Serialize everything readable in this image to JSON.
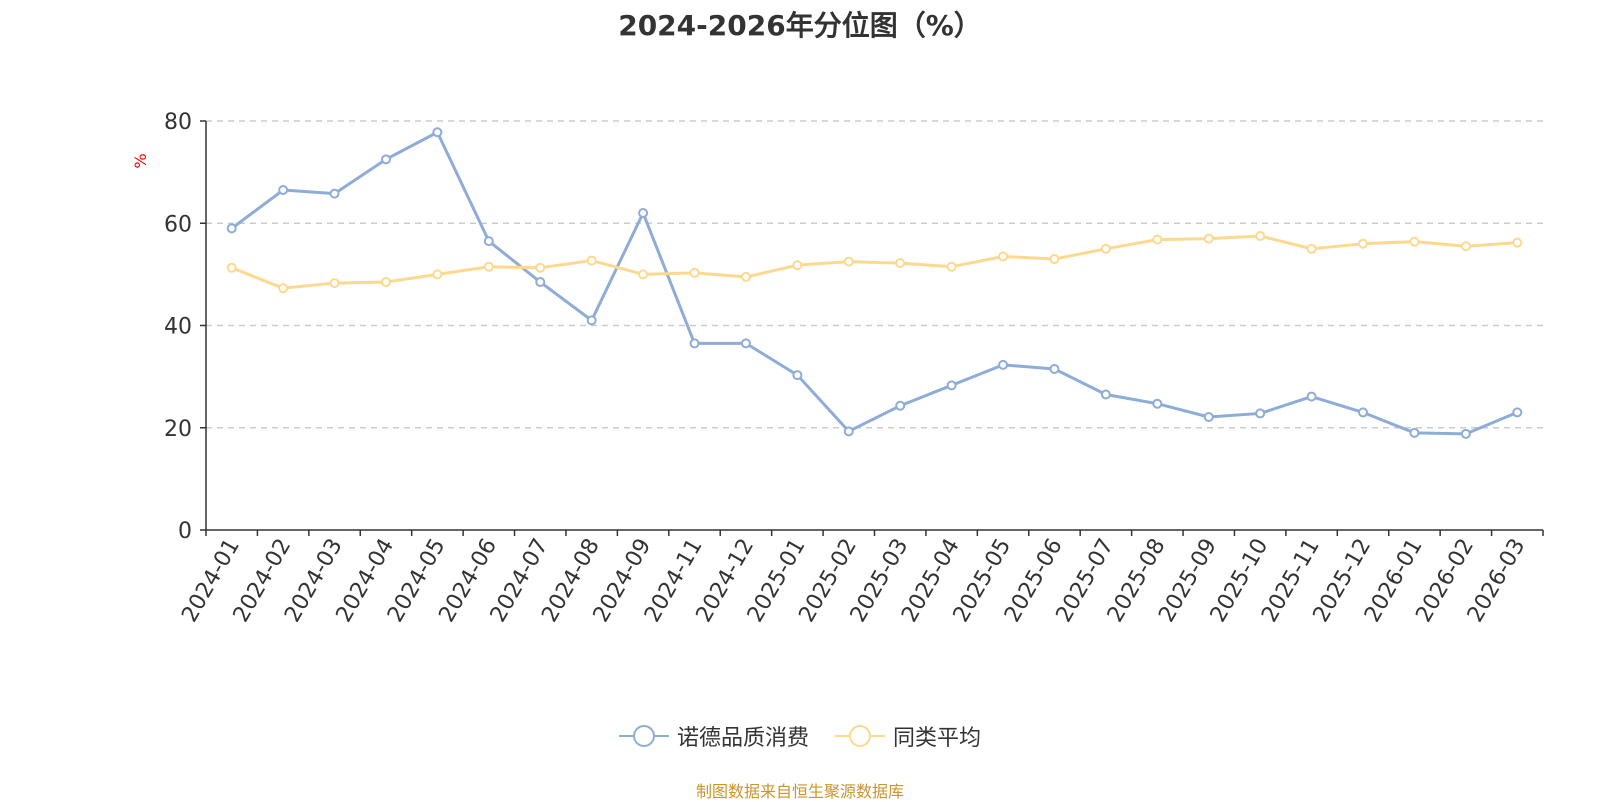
{
  "chart_data": {
    "type": "line",
    "title": "2024-2026年分位图（%）",
    "ylabel": "%",
    "ylim": [
      0,
      80
    ],
    "yticks": [
      0,
      20,
      40,
      60,
      80
    ],
    "grid": true,
    "legend_position": "bottom",
    "categories": [
      "2024-01",
      "2024-02",
      "2024-03",
      "2024-04",
      "2024-05",
      "2024-06",
      "2024-07",
      "2024-08",
      "2024-09",
      "2024-11",
      "2024-12",
      "2025-01",
      "2025-02",
      "2025-03",
      "2025-04",
      "2025-05",
      "2025-06",
      "2025-07",
      "2025-08",
      "2025-09",
      "2025-10",
      "2025-11",
      "2025-12",
      "2026-01",
      "2026-02",
      "2026-03"
    ],
    "series": [
      {
        "name": "诺德品质消费",
        "color": "#8eacd8",
        "values": [
          59.0,
          66.5,
          65.8,
          72.5,
          77.8,
          56.5,
          48.5,
          41.0,
          62.0,
          36.5,
          36.5,
          30.3,
          19.3,
          24.3,
          28.3,
          32.3,
          31.5,
          26.5,
          24.7,
          22.1,
          22.8,
          26.1,
          23.0,
          19.0,
          18.8,
          23.0
        ]
      },
      {
        "name": "同类平均",
        "color": "#fcd98f",
        "values": [
          51.3,
          47.3,
          48.3,
          48.5,
          50.0,
          51.5,
          51.3,
          52.7,
          50.0,
          50.3,
          49.5,
          51.8,
          52.5,
          52.2,
          51.5,
          53.5,
          53.0,
          55.0,
          56.8,
          57.0,
          57.5,
          55.0,
          56.0,
          56.4,
          55.5,
          56.2
        ]
      }
    ]
  },
  "source_note": "制图数据来自恒生聚源数据库"
}
